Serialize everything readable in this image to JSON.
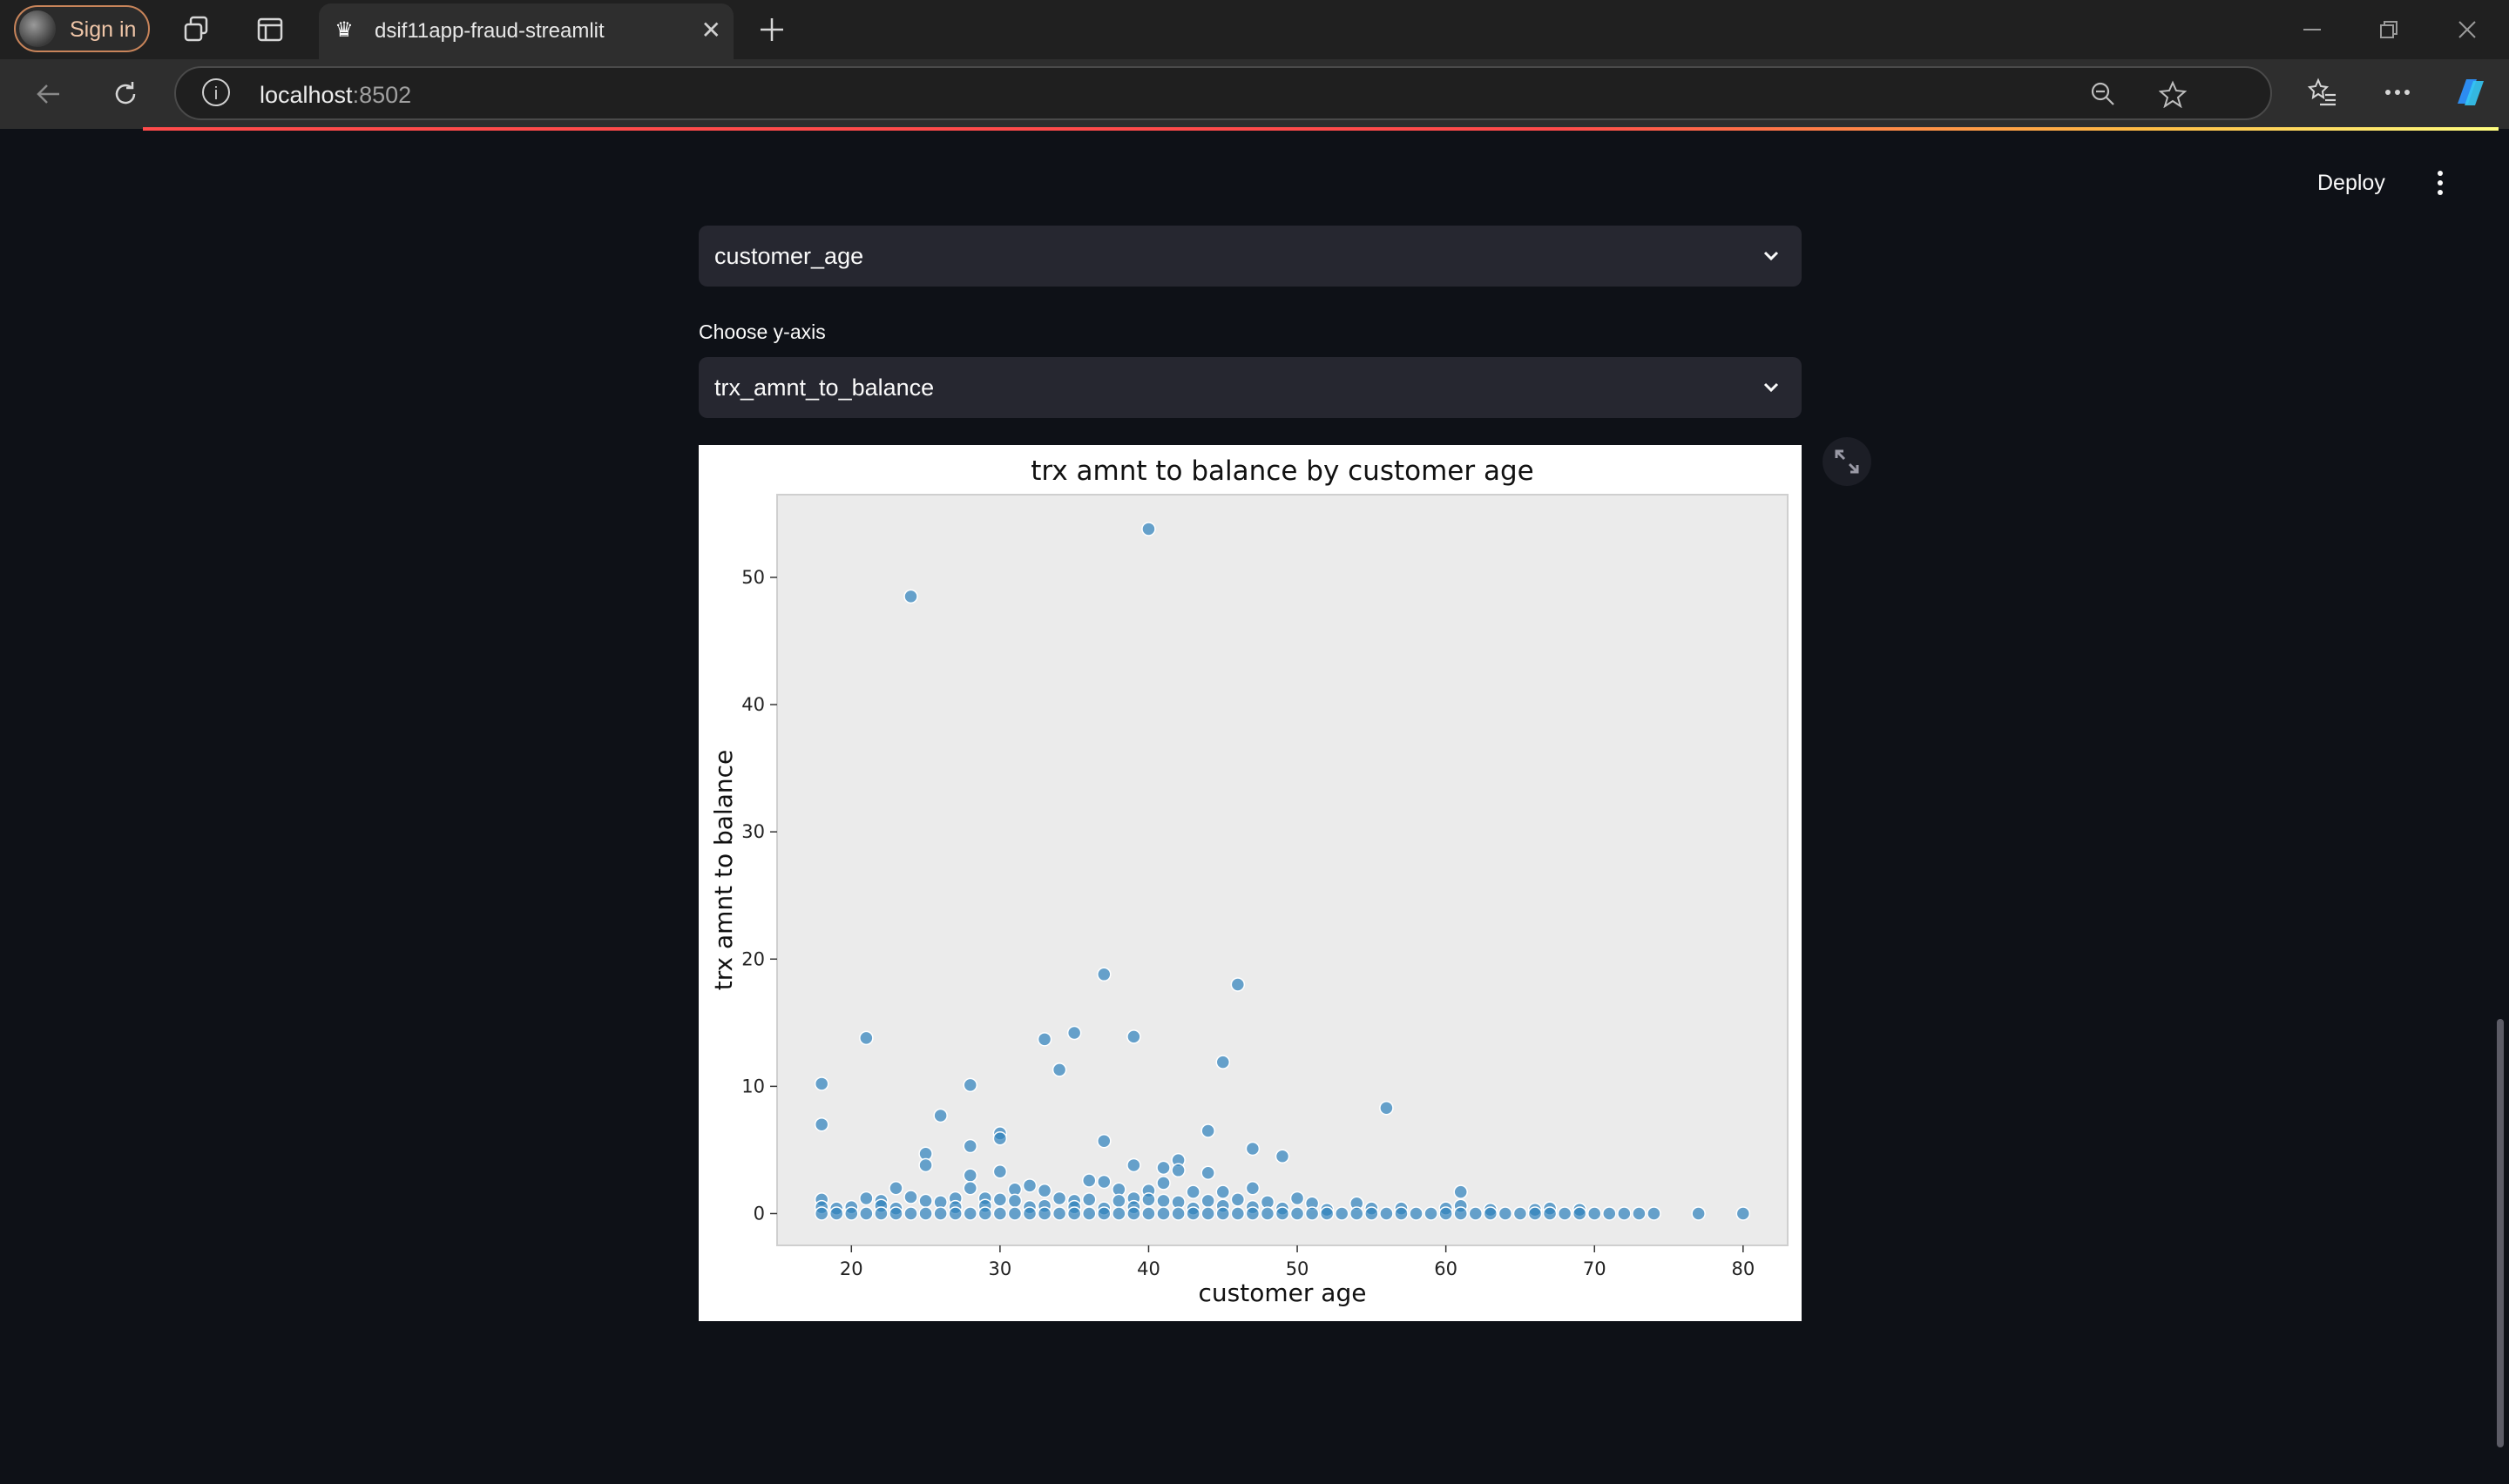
{
  "browser": {
    "sign_in_label": "Sign in",
    "tab_title": "dsif11app-fraud-streamlit",
    "url_host": "localhost",
    "url_port": ":8502"
  },
  "app": {
    "deploy_label": "Deploy",
    "x_select_value": "customer_age",
    "y_axis_label": "Choose y-axis",
    "y_select_value": "trx_amnt_to_balance"
  },
  "colors": {
    "page_bg": "#0e1117",
    "point": "#3182bd"
  },
  "chart_data": {
    "type": "scatter",
    "title": "trx amnt to balance by customer age",
    "xlabel": "customer age",
    "ylabel": "trx amnt to balance",
    "xlim": [
      15,
      83
    ],
    "ylim": [
      -2.5,
      56.5
    ],
    "xticks": [
      20,
      30,
      40,
      50,
      60,
      70,
      80
    ],
    "yticks": [
      0,
      10,
      20,
      30,
      40,
      50
    ],
    "grid": false,
    "points": [
      [
        40,
        53.8
      ],
      [
        24,
        48.5
      ],
      [
        37,
        18.8
      ],
      [
        46,
        18.0
      ],
      [
        35,
        14.2
      ],
      [
        33,
        13.7
      ],
      [
        39,
        13.9
      ],
      [
        21,
        13.8
      ],
      [
        45,
        11.9
      ],
      [
        34,
        11.3
      ],
      [
        18,
        10.2
      ],
      [
        28,
        10.1
      ],
      [
        56,
        8.3
      ],
      [
        26,
        7.7
      ],
      [
        18,
        7.0
      ],
      [
        30,
        6.3
      ],
      [
        30,
        5.9
      ],
      [
        44,
        6.5
      ],
      [
        37,
        5.7
      ],
      [
        28,
        5.3
      ],
      [
        47,
        5.1
      ],
      [
        25,
        4.7
      ],
      [
        49,
        4.5
      ],
      [
        42,
        4.2
      ],
      [
        25,
        3.8
      ],
      [
        39,
        3.8
      ],
      [
        41,
        3.6
      ],
      [
        42,
        3.4
      ],
      [
        30,
        3.3
      ],
      [
        44,
        3.2
      ],
      [
        28,
        3.0
      ],
      [
        36,
        2.6
      ],
      [
        37,
        2.5
      ],
      [
        41,
        2.4
      ],
      [
        32,
        2.2
      ],
      [
        23,
        2.0
      ],
      [
        47,
        2.0
      ],
      [
        61,
        1.7
      ],
      [
        28,
        2.0
      ],
      [
        31,
        1.9
      ],
      [
        33,
        1.8
      ],
      [
        38,
        1.9
      ],
      [
        40,
        1.8
      ],
      [
        43,
        1.7
      ],
      [
        45,
        1.7
      ],
      [
        18,
        1.1
      ],
      [
        21,
        1.2
      ],
      [
        22,
        1.0
      ],
      [
        24,
        1.3
      ],
      [
        25,
        1.0
      ],
      [
        26,
        0.9
      ],
      [
        27,
        1.2
      ],
      [
        29,
        1.2
      ],
      [
        30,
        1.1
      ],
      [
        31,
        1.0
      ],
      [
        34,
        1.2
      ],
      [
        35,
        1.0
      ],
      [
        36,
        1.1
      ],
      [
        38,
        1.0
      ],
      [
        39,
        1.2
      ],
      [
        40,
        1.1
      ],
      [
        41,
        1.0
      ],
      [
        42,
        0.9
      ],
      [
        44,
        1.0
      ],
      [
        46,
        1.1
      ],
      [
        48,
        0.9
      ],
      [
        50,
        1.2
      ],
      [
        51,
        0.8
      ],
      [
        54,
        0.8
      ],
      [
        57,
        0.4
      ],
      [
        60,
        0.4
      ],
      [
        61,
        0.6
      ],
      [
        63,
        0.3
      ],
      [
        66,
        0.3
      ],
      [
        67,
        0.4
      ],
      [
        69,
        0.3
      ],
      [
        18,
        0.5
      ],
      [
        19,
        0.4
      ],
      [
        20,
        0.5
      ],
      [
        22,
        0.6
      ],
      [
        23,
        0.4
      ],
      [
        27,
        0.5
      ],
      [
        29,
        0.6
      ],
      [
        32,
        0.5
      ],
      [
        33,
        0.6
      ],
      [
        35,
        0.5
      ],
      [
        37,
        0.4
      ],
      [
        39,
        0.5
      ],
      [
        43,
        0.4
      ],
      [
        45,
        0.6
      ],
      [
        47,
        0.5
      ],
      [
        49,
        0.4
      ],
      [
        52,
        0.3
      ],
      [
        55,
        0.4
      ],
      [
        18,
        0.0
      ],
      [
        19,
        0.0
      ],
      [
        20,
        0.0
      ],
      [
        21,
        0.0
      ],
      [
        22,
        0.0
      ],
      [
        23,
        0.0
      ],
      [
        24,
        0.0
      ],
      [
        25,
        0.0
      ],
      [
        26,
        0.0
      ],
      [
        27,
        0.0
      ],
      [
        28,
        0.0
      ],
      [
        29,
        0.0
      ],
      [
        30,
        0.0
      ],
      [
        31,
        0.0
      ],
      [
        32,
        0.0
      ],
      [
        33,
        0.0
      ],
      [
        34,
        0.0
      ],
      [
        35,
        0.0
      ],
      [
        36,
        0.0
      ],
      [
        37,
        0.0
      ],
      [
        38,
        0.0
      ],
      [
        39,
        0.0
      ],
      [
        40,
        0.0
      ],
      [
        41,
        0.0
      ],
      [
        42,
        0.0
      ],
      [
        43,
        0.0
      ],
      [
        44,
        0.0
      ],
      [
        45,
        0.0
      ],
      [
        46,
        0.0
      ],
      [
        47,
        0.0
      ],
      [
        48,
        0.0
      ],
      [
        49,
        0.0
      ],
      [
        50,
        0.0
      ],
      [
        51,
        0.0
      ],
      [
        52,
        0.0
      ],
      [
        53,
        0.0
      ],
      [
        54,
        0.0
      ],
      [
        55,
        0.0
      ],
      [
        56,
        0.0
      ],
      [
        57,
        0.0
      ],
      [
        58,
        0.0
      ],
      [
        59,
        0.0
      ],
      [
        60,
        0.0
      ],
      [
        61,
        0.0
      ],
      [
        62,
        0.0
      ],
      [
        63,
        0.0
      ],
      [
        64,
        0.0
      ],
      [
        65,
        0.0
      ],
      [
        66,
        0.0
      ],
      [
        67,
        0.0
      ],
      [
        68,
        0.0
      ],
      [
        69,
        0.0
      ],
      [
        70,
        0.0
      ],
      [
        71,
        0.0
      ],
      [
        72,
        0.0
      ],
      [
        73,
        0.0
      ],
      [
        74,
        0.0
      ],
      [
        77,
        0.0
      ],
      [
        80,
        0.0
      ]
    ]
  }
}
